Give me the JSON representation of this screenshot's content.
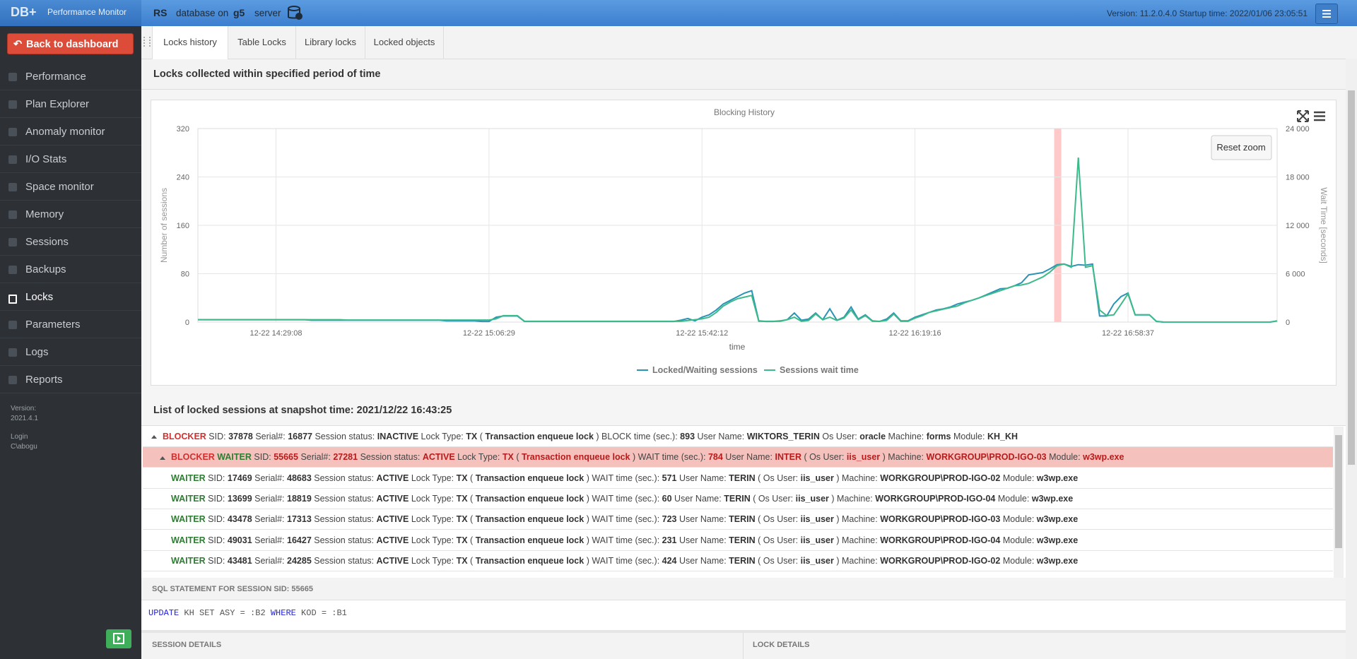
{
  "header": {
    "logo": "DB+",
    "app": "Performance Monitor",
    "db": "RS",
    "db_on": "database on",
    "server_name": "g5",
    "server": "server",
    "info": "Version: 11.2.0.4.0  Startup time: 2022/01/06 23:05:51"
  },
  "sidebar": {
    "back": "Back to dashboard",
    "menu": [
      "Performance",
      "Plan Explorer",
      "Anomaly monitor",
      "I/O Stats",
      "Space monitor",
      "Memory",
      "Sessions",
      "Backups",
      "Locks",
      "Parameters",
      "Logs",
      "Reports"
    ],
    "version_label": "Version:",
    "version": "2021.4.1",
    "login_label": "Login",
    "login": "C\\abogu"
  },
  "tabs": [
    "Locks history",
    "Table Locks",
    "Library locks",
    "Locked objects"
  ],
  "history_heading": "Locks collected within specified period of time",
  "chart_data": {
    "type": "line",
    "title": "Blocking History",
    "xlabel": "time",
    "ylabel": "Number of sessions",
    "y2label": "Wait Time [seconds]",
    "reset": "Reset zoom",
    "grid": true,
    "legend": "bottom",
    "categories": [
      null,
      null,
      null,
      null,
      null,
      null,
      null,
      null,
      null,
      null,
      null,
      "12-22 14:29:08",
      null,
      null,
      null,
      null,
      null,
      null,
      null,
      null,
      null,
      null,
      null,
      null,
      null,
      null,
      null,
      null,
      null,
      null,
      null,
      null,
      null,
      null,
      null,
      null,
      null,
      null,
      null,
      null,
      null,
      "12-22 15:06:29",
      null,
      null,
      null,
      null,
      null,
      null,
      null,
      null,
      null,
      null,
      null,
      null,
      null,
      null,
      null,
      null,
      null,
      null,
      null,
      null,
      null,
      null,
      null,
      null,
      null,
      null,
      null,
      null,
      null,
      "12-22 15:42:12",
      null,
      null,
      null,
      null,
      null,
      null,
      null,
      null,
      null,
      null,
      null,
      null,
      null,
      null,
      null,
      null,
      null,
      null,
      null,
      null,
      null,
      null,
      null,
      null,
      null,
      null,
      null,
      null,
      null,
      "12-22 16:19:16",
      null,
      null,
      null,
      null,
      null,
      null,
      null,
      null,
      null,
      null,
      null,
      null,
      null,
      null,
      null,
      null,
      null,
      null,
      null,
      null,
      null,
      null,
      null,
      null,
      null,
      null,
      null,
      null,
      null,
      "12-22 16:58:37",
      null,
      null,
      null,
      null,
      null,
      null,
      null,
      null,
      null,
      null,
      null,
      null,
      null,
      null,
      null,
      null,
      null,
      null,
      null,
      null,
      null
    ],
    "series": [
      {
        "name": "Locked/Waiting sessions",
        "color": "#2a93b6",
        "values": [
          4,
          4,
          4,
          4,
          4,
          4,
          4,
          4,
          4,
          4,
          4,
          4,
          4,
          4,
          4,
          4,
          3,
          3,
          3,
          3,
          3,
          3,
          3,
          3,
          3,
          3,
          3,
          3,
          3,
          3,
          3,
          3,
          3,
          3,
          3,
          2,
          2,
          2,
          2,
          2,
          1,
          1,
          8,
          10,
          10,
          10,
          1,
          1,
          1,
          1,
          1,
          1,
          1,
          1,
          1,
          1,
          1,
          1,
          1,
          1,
          1,
          1,
          1,
          1,
          1,
          1,
          1,
          1,
          3,
          6,
          2,
          8,
          12,
          20,
          30,
          36,
          42,
          48,
          52,
          2,
          1,
          1,
          2,
          4,
          15,
          3,
          5,
          15,
          4,
          22,
          3,
          8,
          25,
          5,
          12,
          2,
          1,
          5,
          15,
          2,
          2,
          8,
          12,
          16,
          20,
          22,
          25,
          30,
          33,
          36,
          40,
          45,
          50,
          55,
          56,
          60,
          65,
          78,
          80,
          82,
          88,
          95,
          96,
          92,
          95,
          94,
          96,
          10,
          10,
          30,
          42,
          48,
          12,
          12,
          12,
          1,
          0,
          0,
          0,
          0,
          0,
          0,
          0,
          0,
          0,
          0,
          0,
          0,
          0,
          0,
          0,
          0,
          2
        ]
      },
      {
        "name": "Sessions wait time",
        "color": "#3cba8a",
        "axis": "y2",
        "values": [
          300,
          300,
          300,
          300,
          300,
          300,
          300,
          300,
          300,
          300,
          300,
          300,
          300,
          300,
          300,
          300,
          300,
          300,
          300,
          300,
          300,
          250,
          250,
          250,
          250,
          250,
          250,
          250,
          250,
          250,
          250,
          250,
          250,
          250,
          250,
          250,
          250,
          250,
          250,
          250,
          250,
          250,
          400,
          800,
          800,
          800,
          100,
          100,
          100,
          100,
          100,
          100,
          100,
          100,
          100,
          100,
          100,
          100,
          100,
          100,
          100,
          100,
          100,
          100,
          100,
          100,
          100,
          100,
          100,
          200,
          300,
          400,
          600,
          1200,
          2000,
          2500,
          2900,
          3100,
          3300,
          100,
          100,
          100,
          100,
          300,
          600,
          100,
          200,
          1000,
          300,
          600,
          200,
          500,
          1500,
          300,
          800,
          100,
          100,
          200,
          1000,
          100,
          100,
          500,
          800,
          1200,
          1400,
          1600,
          1800,
          2000,
          2400,
          2700,
          3000,
          3300,
          3600,
          3900,
          4200,
          4500,
          4600,
          4800,
          5200,
          5600,
          6200,
          7000,
          7200,
          6800,
          20400,
          6800,
          7000,
          1500,
          800,
          900,
          2200,
          3500,
          900,
          900,
          900,
          100,
          0,
          0,
          0,
          0,
          0,
          0,
          0,
          0,
          0,
          0,
          0,
          0,
          0,
          0,
          0,
          0,
          150
        ]
      }
    ],
    "ylim": [
      0,
      320
    ],
    "yticks": [
      0,
      80,
      160,
      240,
      320
    ],
    "y2lim": [
      0,
      24000
    ],
    "y2ticks": [
      0,
      {
        "value": 6000,
        "label": "6 000"
      },
      {
        "value": 12000,
        "label": "12 000"
      },
      {
        "value": 18000,
        "label": "18 000"
      },
      {
        "value": 24000,
        "label": "24 000"
      }
    ]
  },
  "list_heading": "List of locked sessions at snapshot time: 2021/12/22 16:43:25",
  "rows": [
    {
      "blocker": "BLOCKER",
      "parts": [
        [
          "SID:",
          "37878"
        ],
        [
          "Serial#:",
          "16877"
        ],
        [
          "Session status:",
          "INACTIVE"
        ],
        [
          "Lock Type:",
          "TX"
        ],
        [
          "(",
          "Transaction enqueue lock"
        ],
        [
          ") BLOCK time (sec.):",
          "893"
        ],
        [
          "User Name:",
          "WIKTORS_TERIN"
        ],
        [
          "Os User:",
          "oracle"
        ],
        [
          "Machine:",
          "forms"
        ],
        [
          "Module:",
          "KH_KH"
        ]
      ]
    },
    {
      "blocker": "BLOCKER",
      "waiter": "WAITER",
      "parts": [
        [
          "SID:",
          "55665"
        ],
        [
          "Serial#:",
          "27281"
        ],
        [
          "Session status:",
          "ACTIVE"
        ],
        [
          "Lock Type:",
          "TX"
        ],
        [
          "(",
          "Transaction enqueue lock"
        ],
        [
          ") WAIT time (sec.):",
          "784"
        ],
        [
          "User Name:",
          "INTER"
        ],
        [
          "( Os User:",
          "iis_user"
        ],
        [
          ") Machine:",
          "WORKGROUP\\PROD-IGO-03"
        ],
        [
          "Module:",
          "w3wp.exe"
        ]
      ]
    },
    {
      "waiter": "WAITER",
      "parts": [
        [
          "SID:",
          "17469"
        ],
        [
          "Serial#:",
          "48683"
        ],
        [
          "Session status:",
          "ACTIVE"
        ],
        [
          "Lock Type:",
          "TX"
        ],
        [
          "(",
          "Transaction enqueue lock"
        ],
        [
          ") WAIT time (sec.):",
          "571"
        ],
        [
          "User Name:",
          "TERIN"
        ],
        [
          "( Os User:",
          "iis_user"
        ],
        [
          ") Machine:",
          "WORKGROUP\\PROD-IGO-02"
        ],
        [
          "Module:",
          "w3wp.exe"
        ]
      ]
    },
    {
      "waiter": "WAITER",
      "parts": [
        [
          "SID:",
          "13699"
        ],
        [
          "Serial#:",
          "18819"
        ],
        [
          "Session status:",
          "ACTIVE"
        ],
        [
          "Lock Type:",
          "TX"
        ],
        [
          "(",
          "Transaction enqueue lock"
        ],
        [
          ") WAIT time (sec.):",
          "60"
        ],
        [
          "User Name:",
          "TERIN"
        ],
        [
          "( Os User:",
          "iis_user"
        ],
        [
          ") Machine:",
          "WORKGROUP\\PROD-IGO-04"
        ],
        [
          "Module:",
          "w3wp.exe"
        ]
      ]
    },
    {
      "waiter": "WAITER",
      "parts": [
        [
          "SID:",
          "43478"
        ],
        [
          "Serial#:",
          "17313"
        ],
        [
          "Session status:",
          "ACTIVE"
        ],
        [
          "Lock Type:",
          "TX"
        ],
        [
          "(",
          "Transaction enqueue lock"
        ],
        [
          ") WAIT time (sec.):",
          "723"
        ],
        [
          "User Name:",
          "TERIN"
        ],
        [
          "( Os User:",
          "iis_user"
        ],
        [
          ") Machine:",
          "WORKGROUP\\PROD-IGO-03"
        ],
        [
          "Module:",
          "w3wp.exe"
        ]
      ]
    },
    {
      "waiter": "WAITER",
      "parts": [
        [
          "SID:",
          "49031"
        ],
        [
          "Serial#:",
          "16427"
        ],
        [
          "Session status:",
          "ACTIVE"
        ],
        [
          "Lock Type:",
          "TX"
        ],
        [
          "(",
          "Transaction enqueue lock"
        ],
        [
          ") WAIT time (sec.):",
          "231"
        ],
        [
          "User Name:",
          "TERIN"
        ],
        [
          "( Os User:",
          "iis_user"
        ],
        [
          ") Machine:",
          "WORKGROUP\\PROD-IGO-04"
        ],
        [
          "Module:",
          "w3wp.exe"
        ]
      ]
    },
    {
      "waiter": "WAITER",
      "parts": [
        [
          "SID:",
          "43481"
        ],
        [
          "Serial#:",
          "24285"
        ],
        [
          "Session status:",
          "ACTIVE"
        ],
        [
          "Lock Type:",
          "TX"
        ],
        [
          "(",
          "Transaction enqueue lock"
        ],
        [
          ") WAIT time (sec.):",
          "424"
        ],
        [
          "User Name:",
          "TERIN"
        ],
        [
          "( Os User:",
          "iis_user"
        ],
        [
          ") Machine:",
          "WORKGROUP\\PROD-IGO-02"
        ],
        [
          "Module:",
          "w3wp.exe"
        ]
      ]
    }
  ],
  "sql_heading": "SQL STATEMENT FOR SESSION SID: 55665",
  "sql": [
    "UPDATE",
    " KH SET ASY = :B2 ",
    "WHERE",
    " KOD = :B1"
  ],
  "session_details": "SESSION DETAILS",
  "lock_details": "LOCK DETAILS"
}
